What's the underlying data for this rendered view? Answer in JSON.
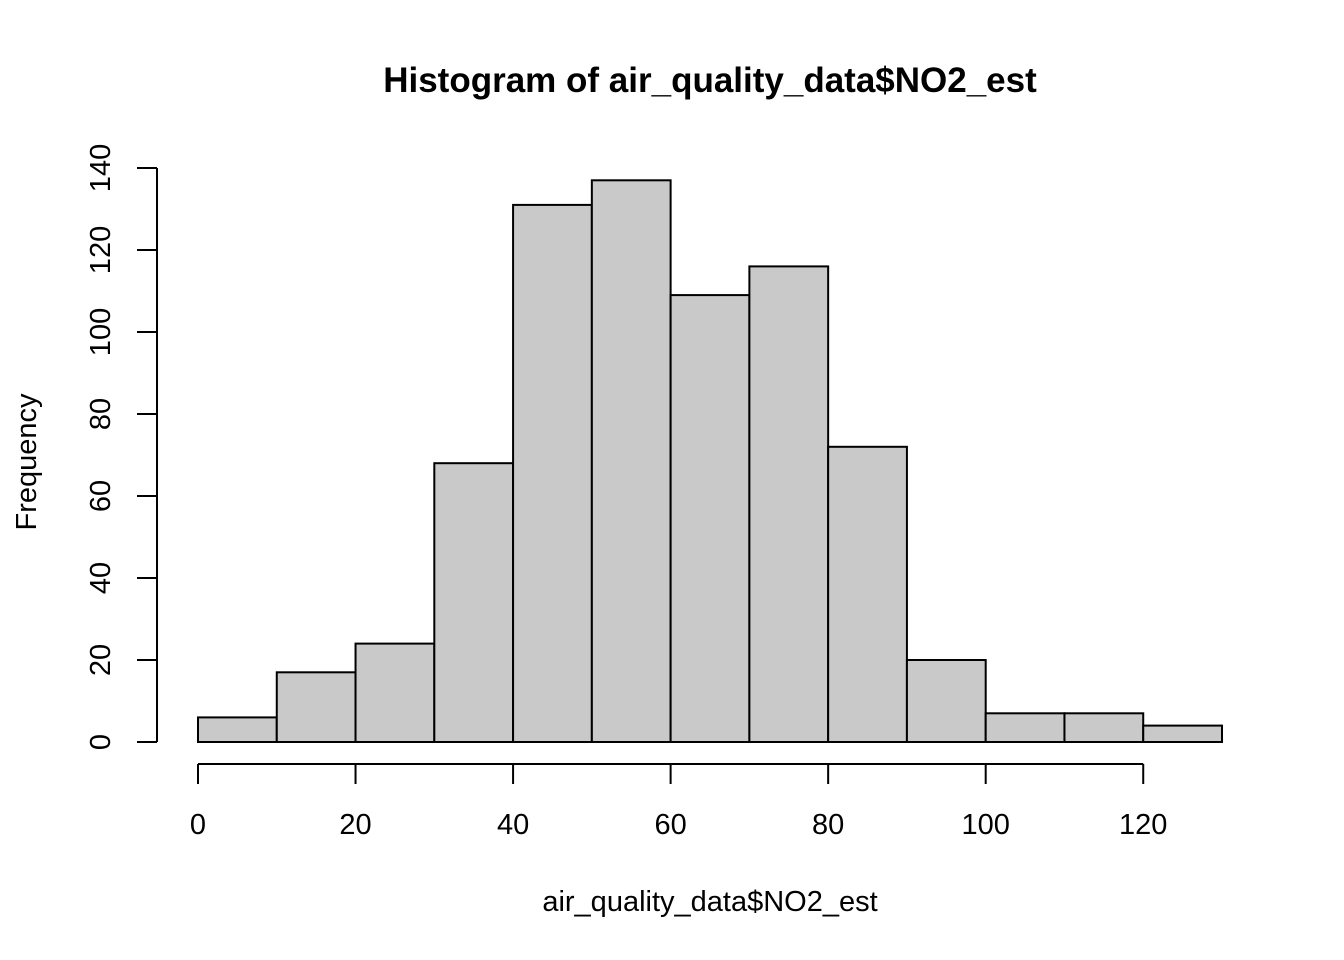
{
  "chart_data": {
    "type": "bar",
    "title": "Histogram of air_quality_data$NO2_est",
    "xlabel": "air_quality_data$NO2_est",
    "ylabel": "Frequency",
    "bin_edges": [
      0,
      10,
      20,
      30,
      40,
      50,
      60,
      70,
      80,
      90,
      100,
      110,
      120,
      130
    ],
    "values": [
      6,
      17,
      24,
      68,
      131,
      137,
      109,
      116,
      72,
      20,
      7,
      7,
      4
    ],
    "xlim": [
      0,
      130
    ],
    "ylim": [
      0,
      140
    ],
    "x_ticks": [
      0,
      20,
      40,
      60,
      80,
      100,
      120
    ],
    "y_ticks": [
      0,
      20,
      40,
      60,
      80,
      100,
      120,
      140
    ],
    "bar_color": "#c9c9c9",
    "grid": false,
    "legend": "none"
  }
}
